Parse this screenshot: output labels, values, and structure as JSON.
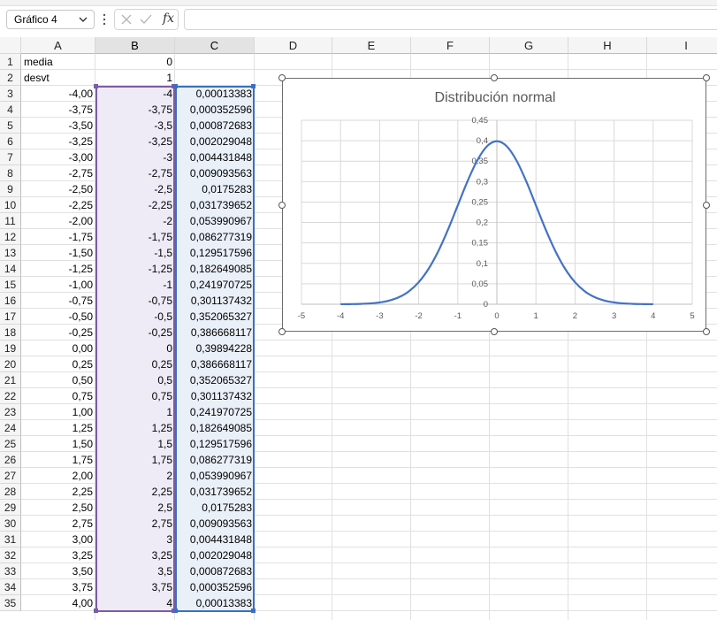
{
  "formula_bar": {
    "name_box": "Gráfico 4",
    "fx_label": "fx",
    "formula": ""
  },
  "columns": [
    "A",
    "B",
    "C",
    "D",
    "E",
    "F",
    "G",
    "H",
    "I"
  ],
  "selected_columns": [
    "B",
    "C"
  ],
  "rows": [
    {
      "n": "1",
      "a": "media",
      "b": "0",
      "c": ""
    },
    {
      "n": "2",
      "a": "desvt",
      "b": "1",
      "c": ""
    },
    {
      "n": "3",
      "a": "-4,00",
      "b": "-4",
      "c": "0,00013383"
    },
    {
      "n": "4",
      "a": "-3,75",
      "b": "-3,75",
      "c": "0,000352596"
    },
    {
      "n": "5",
      "a": "-3,50",
      "b": "-3,5",
      "c": "0,000872683"
    },
    {
      "n": "6",
      "a": "-3,25",
      "b": "-3,25",
      "c": "0,002029048"
    },
    {
      "n": "7",
      "a": "-3,00",
      "b": "-3",
      "c": "0,004431848"
    },
    {
      "n": "8",
      "a": "-2,75",
      "b": "-2,75",
      "c": "0,009093563"
    },
    {
      "n": "9",
      "a": "-2,50",
      "b": "-2,5",
      "c": "0,0175283"
    },
    {
      "n": "10",
      "a": "-2,25",
      "b": "-2,25",
      "c": "0,031739652"
    },
    {
      "n": "11",
      "a": "-2,00",
      "b": "-2",
      "c": "0,053990967"
    },
    {
      "n": "12",
      "a": "-1,75",
      "b": "-1,75",
      "c": "0,086277319"
    },
    {
      "n": "13",
      "a": "-1,50",
      "b": "-1,5",
      "c": "0,129517596"
    },
    {
      "n": "14",
      "a": "-1,25",
      "b": "-1,25",
      "c": "0,182649085"
    },
    {
      "n": "15",
      "a": "-1,00",
      "b": "-1",
      "c": "0,241970725"
    },
    {
      "n": "16",
      "a": "-0,75",
      "b": "-0,75",
      "c": "0,301137432"
    },
    {
      "n": "17",
      "a": "-0,50",
      "b": "-0,5",
      "c": "0,352065327"
    },
    {
      "n": "18",
      "a": "-0,25",
      "b": "-0,25",
      "c": "0,386668117"
    },
    {
      "n": "19",
      "a": "0,00",
      "b": "0",
      "c": "0,39894228"
    },
    {
      "n": "20",
      "a": "0,25",
      "b": "0,25",
      "c": "0,386668117"
    },
    {
      "n": "21",
      "a": "0,50",
      "b": "0,5",
      "c": "0,352065327"
    },
    {
      "n": "22",
      "a": "0,75",
      "b": "0,75",
      "c": "0,301137432"
    },
    {
      "n": "23",
      "a": "1,00",
      "b": "1",
      "c": "0,241970725"
    },
    {
      "n": "24",
      "a": "1,25",
      "b": "1,25",
      "c": "0,182649085"
    },
    {
      "n": "25",
      "a": "1,50",
      "b": "1,5",
      "c": "0,129517596"
    },
    {
      "n": "26",
      "a": "1,75",
      "b": "1,75",
      "c": "0,086277319"
    },
    {
      "n": "27",
      "a": "2,00",
      "b": "2",
      "c": "0,053990967"
    },
    {
      "n": "28",
      "a": "2,25",
      "b": "2,25",
      "c": "0,031739652"
    },
    {
      "n": "29",
      "a": "2,50",
      "b": "2,5",
      "c": "0,0175283"
    },
    {
      "n": "30",
      "a": "2,75",
      "b": "2,75",
      "c": "0,009093563"
    },
    {
      "n": "31",
      "a": "3,00",
      "b": "3",
      "c": "0,004431848"
    },
    {
      "n": "32",
      "a": "3,25",
      "b": "3,25",
      "c": "0,002029048"
    },
    {
      "n": "33",
      "a": "3,50",
      "b": "3,5",
      "c": "0,000872683"
    },
    {
      "n": "34",
      "a": "3,75",
      "b": "3,75",
      "c": "0,000352596"
    },
    {
      "n": "35",
      "a": "4,00",
      "b": "4",
      "c": "0,00013383"
    }
  ],
  "colors": {
    "series": "#4472c4",
    "select_b": "#7b5ca6",
    "select_c": "#3a6fc3"
  },
  "chart_data": {
    "type": "scatter",
    "title": "Distribución normal",
    "series": [
      {
        "x": [
          -4,
          -3.75,
          -3.5,
          -3.25,
          -3,
          -2.75,
          -2.5,
          -2.25,
          -2,
          -1.75,
          -1.5,
          -1.25,
          -1,
          -0.75,
          -0.5,
          -0.25,
          0,
          0.25,
          0.5,
          0.75,
          1,
          1.25,
          1.5,
          1.75,
          2,
          2.25,
          2.5,
          2.75,
          3,
          3.25,
          3.5,
          3.75,
          4
        ],
        "y": [
          0.00013383,
          0.000352596,
          0.000872683,
          0.002029048,
          0.004431848,
          0.009093563,
          0.0175283,
          0.031739652,
          0.053990967,
          0.086277319,
          0.129517596,
          0.182649085,
          0.241970725,
          0.301137432,
          0.352065327,
          0.386668117,
          0.39894228,
          0.386668117,
          0.352065327,
          0.301137432,
          0.241970725,
          0.182649085,
          0.129517596,
          0.086277319,
          0.053990967,
          0.031739652,
          0.0175283,
          0.009093563,
          0.004431848,
          0.002029048,
          0.000872683,
          0.000352596,
          0.00013383
        ]
      }
    ],
    "xlim": [
      -5,
      5
    ],
    "ylim": [
      0,
      0.45
    ],
    "x_ticks": [
      -5,
      -4,
      -3,
      -2,
      -1,
      0,
      1,
      2,
      3,
      4,
      5
    ],
    "y_ticks": [
      0,
      0.05,
      0.1,
      0.15,
      0.2,
      0.25,
      0.3,
      0.35,
      0.4,
      0.45
    ],
    "x_tick_labels": [
      "-5",
      "-4",
      "-3",
      "-2",
      "-1",
      "0",
      "1",
      "2",
      "3",
      "4",
      "5"
    ],
    "y_tick_labels": [
      "0",
      "0,05",
      "0,1",
      "0,15",
      "0,2",
      "0,25",
      "0,3",
      "0,35",
      "0,4",
      "0,45"
    ],
    "grid": true,
    "smooth": true
  }
}
